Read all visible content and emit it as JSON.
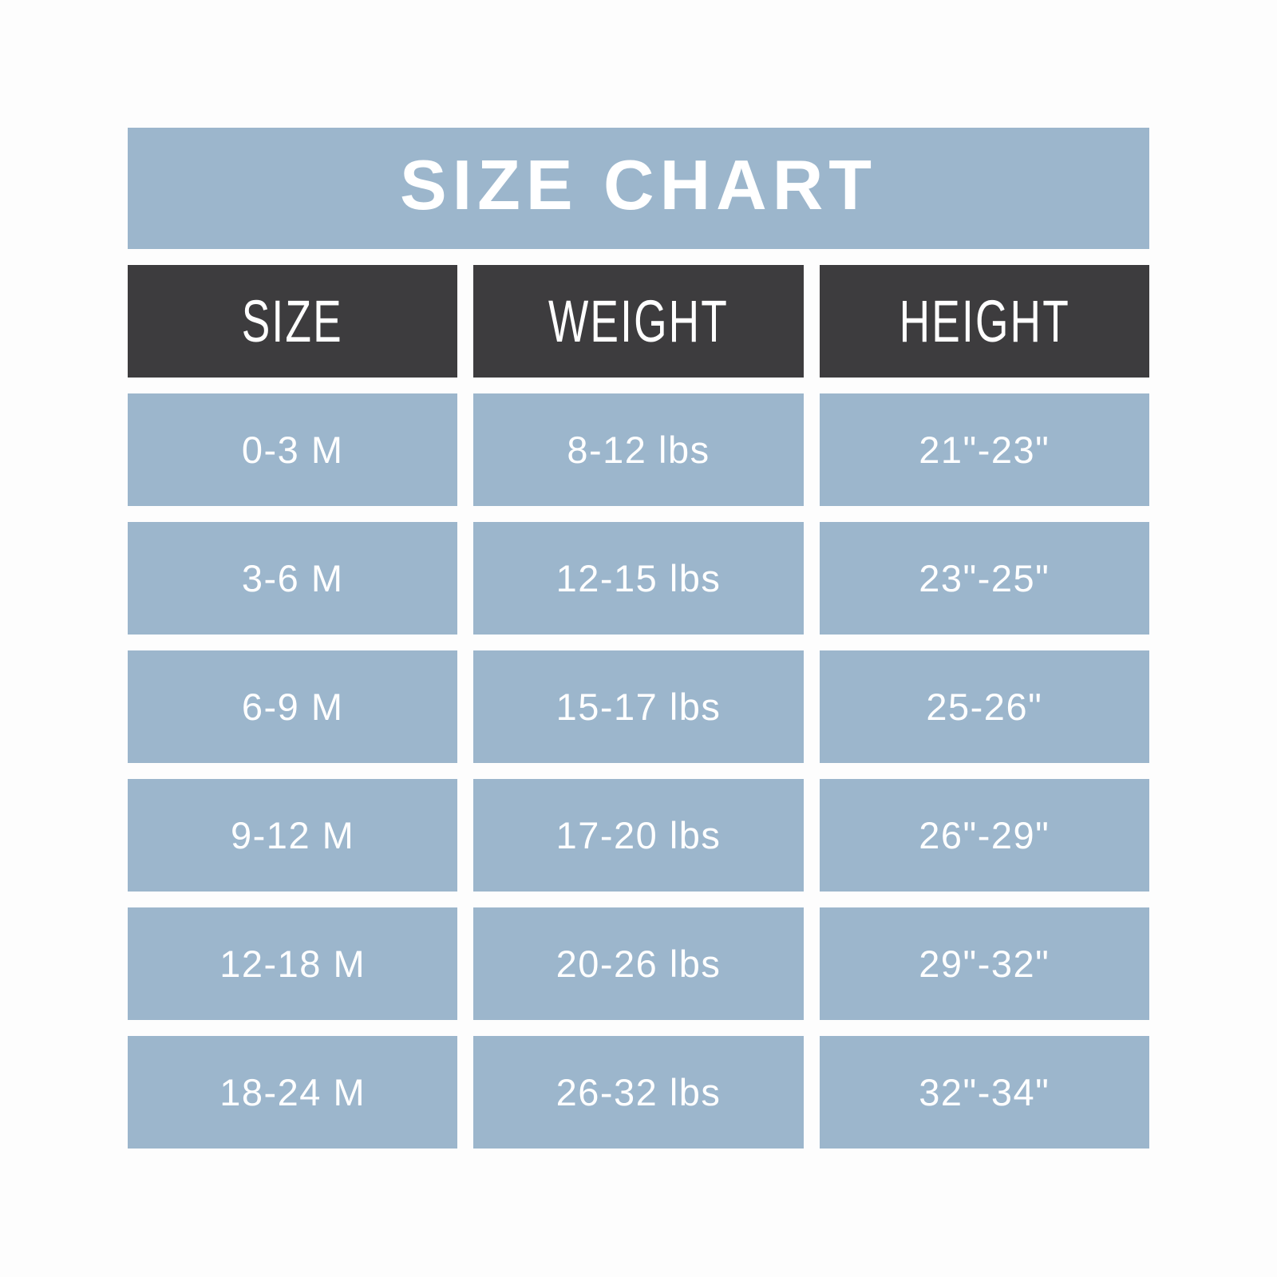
{
  "chart_data": {
    "type": "table",
    "title": "SIZE CHART",
    "columns": [
      "SIZE",
      "WEIGHT",
      "HEIGHT"
    ],
    "rows": [
      [
        "0-3 M",
        "8-12 lbs",
        "21\"-23\""
      ],
      [
        "3-6 M",
        "12-15 lbs",
        "23\"-25\""
      ],
      [
        "6-9 M",
        "15-17 lbs",
        "25-26\""
      ],
      [
        "9-12 M",
        "17-20 lbs",
        "26\"-29\""
      ],
      [
        "12-18 M",
        "20-26 lbs",
        "29\"-32\""
      ],
      [
        "18-24 M",
        "26-32 lbs",
        "32\"-34\""
      ]
    ],
    "layout": {
      "legend": "none",
      "grid": "off"
    }
  },
  "colors": {
    "accent_blue": "#9cb6cc",
    "header_dark": "#3d3c3e",
    "text": "#ffffff",
    "background": "#fdfdfd"
  }
}
